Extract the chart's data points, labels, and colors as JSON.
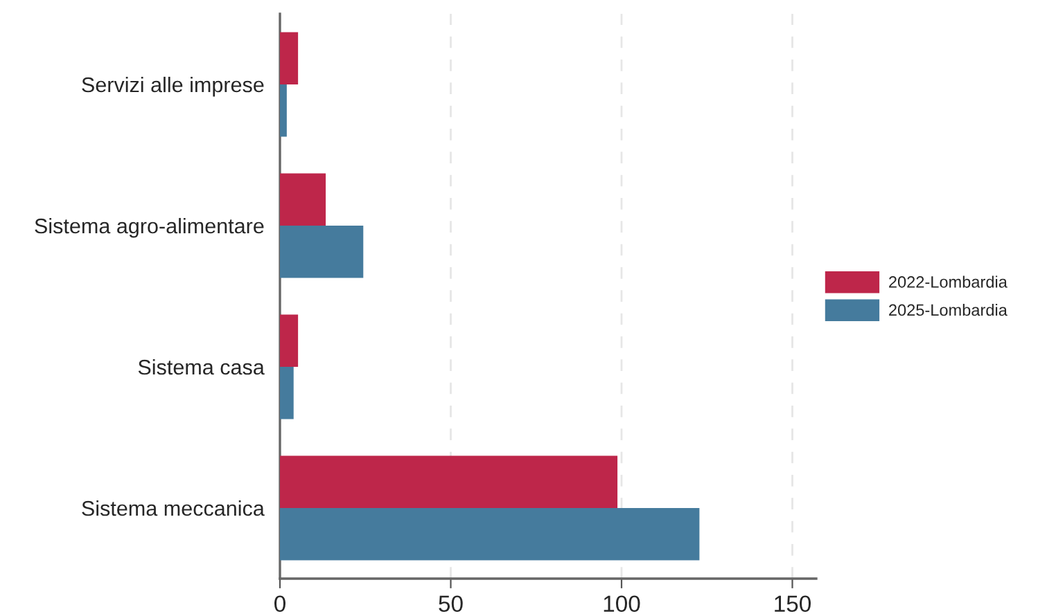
{
  "chart_data": {
    "type": "bar",
    "orientation": "horizontal",
    "categories": [
      "Servizi alle imprese",
      "Sistema agro-alimentare",
      "Sistema casa",
      "Sistema meccanica"
    ],
    "series": [
      {
        "name": "2022-Lombardia",
        "color": "#be264a",
        "values": [
          5.3,
          13.4,
          5.3,
          98.8
        ]
      },
      {
        "name": "2025-Lombardia",
        "color": "#457b9d",
        "values": [
          2,
          24.4,
          4,
          122.8
        ]
      }
    ],
    "xlim": [
      0,
      157
    ],
    "xticks": [
      0,
      50,
      100,
      150
    ],
    "grid": "x",
    "legend": "right"
  }
}
